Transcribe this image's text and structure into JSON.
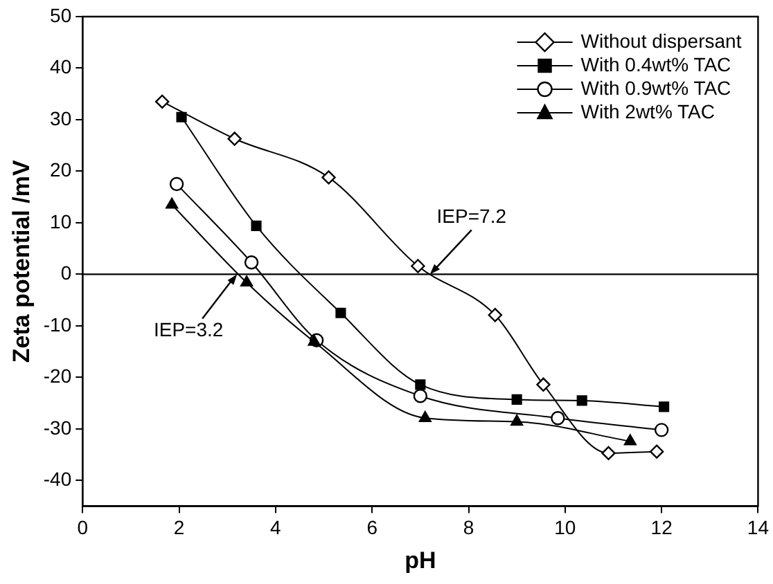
{
  "chart_data": {
    "type": "line",
    "xlabel": "pH",
    "ylabel": "Zeta potential /mV",
    "xlim": [
      0,
      14
    ],
    "xticks": [
      0,
      2,
      4,
      6,
      8,
      10,
      12,
      14
    ],
    "ylim": [
      -45,
      50
    ],
    "yticks": [
      -40,
      -30,
      -20,
      -10,
      0,
      10,
      20,
      30,
      40,
      50
    ],
    "grid": false,
    "legend": "top right",
    "line_style": "solid",
    "ref_lines": [
      {
        "axis": "y",
        "value": 0,
        "color": "#000000"
      }
    ],
    "annotations": [
      {
        "text": "IEP=7.2",
        "x": 7.2,
        "y": 0
      },
      {
        "text": "IEP=3.2",
        "x": 3.2,
        "y": 0
      }
    ],
    "series": [
      {
        "name": "Without dispersant",
        "color": "#000000",
        "marker": "diamond",
        "x": [
          1.65,
          3.15,
          5.1,
          6.95,
          8.55,
          9.55,
          10.9,
          11.9
        ],
        "values": [
          33.5,
          26.3,
          18.8,
          1.6,
          -7.9,
          -21.4,
          -34.7,
          -34.4
        ]
      },
      {
        "name": "With 0.4wt% TAC",
        "color": "#000000",
        "marker": "square",
        "x": [
          2.05,
          3.6,
          5.35,
          7.0,
          9.0,
          10.35,
          12.05
        ],
        "values": [
          30.5,
          9.4,
          -7.5,
          -21.4,
          -24.3,
          -24.5,
          -25.7
        ]
      },
      {
        "name": "With 0.9wt% TAC",
        "color": "#000000",
        "marker": "circle",
        "x": [
          1.95,
          3.5,
          4.85,
          7.0,
          9.85,
          12.0
        ],
        "values": [
          17.5,
          2.3,
          -12.8,
          -23.6,
          -27.9,
          -30.2
        ]
      },
      {
        "name": "With 2wt% TAC",
        "color": "#000000",
        "marker": "triangle",
        "x": [
          1.85,
          3.4,
          4.8,
          7.1,
          9.0,
          11.35
        ],
        "values": [
          13.5,
          -1.6,
          -13.1,
          -27.9,
          -28.6,
          -32.4
        ]
      }
    ]
  }
}
